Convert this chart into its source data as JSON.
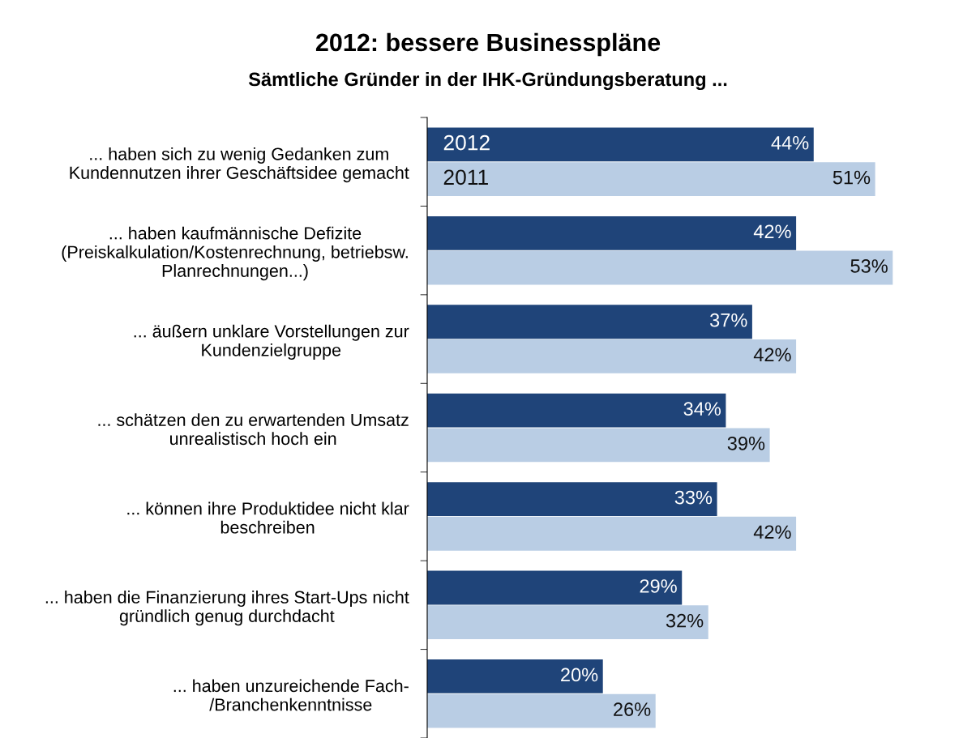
{
  "chart_data": {
    "type": "bar",
    "orientation": "horizontal",
    "title": "2012: bessere Businesspläne",
    "subtitle": "Sämtliche Gründer in der IHK-Gründungsberatung ...",
    "categories": [
      "... haben sich zu wenig Gedanken zum\nKundennutzen ihrer Geschäftsidee gemacht",
      "... haben kaufmännische Defizite\n(Preiskalkulation/Kostenrechnung, betriebsw.\nPlanrechnungen...)",
      "... äußern unklare Vorstellungen zur\nKundenzielgruppe",
      "... schätzen den zu erwartenden Umsatz\nunrealistisch hoch ein",
      "... können ihre Produktidee nicht klar\nbeschreiben",
      "... haben die Finanzierung ihres Start-Ups nicht\ngründlich genug durchdacht",
      "... haben unzureichende Fach-\n/Branchenkenntnisse"
    ],
    "series": [
      {
        "name": "2012",
        "color": "#1f4479",
        "values": [
          44,
          42,
          37,
          34,
          33,
          29,
          20
        ],
        "value_labels": [
          "44%",
          "42%",
          "37%",
          "34%",
          "33%",
          "29%",
          "20%"
        ]
      },
      {
        "name": "2011",
        "color": "#b9cde4",
        "values": [
          51,
          53,
          42,
          39,
          42,
          32,
          26
        ],
        "value_labels": [
          "51%",
          "53%",
          "42%",
          "39%",
          "42%",
          "32%",
          "26%"
        ]
      }
    ],
    "grid": false,
    "legend": false
  }
}
